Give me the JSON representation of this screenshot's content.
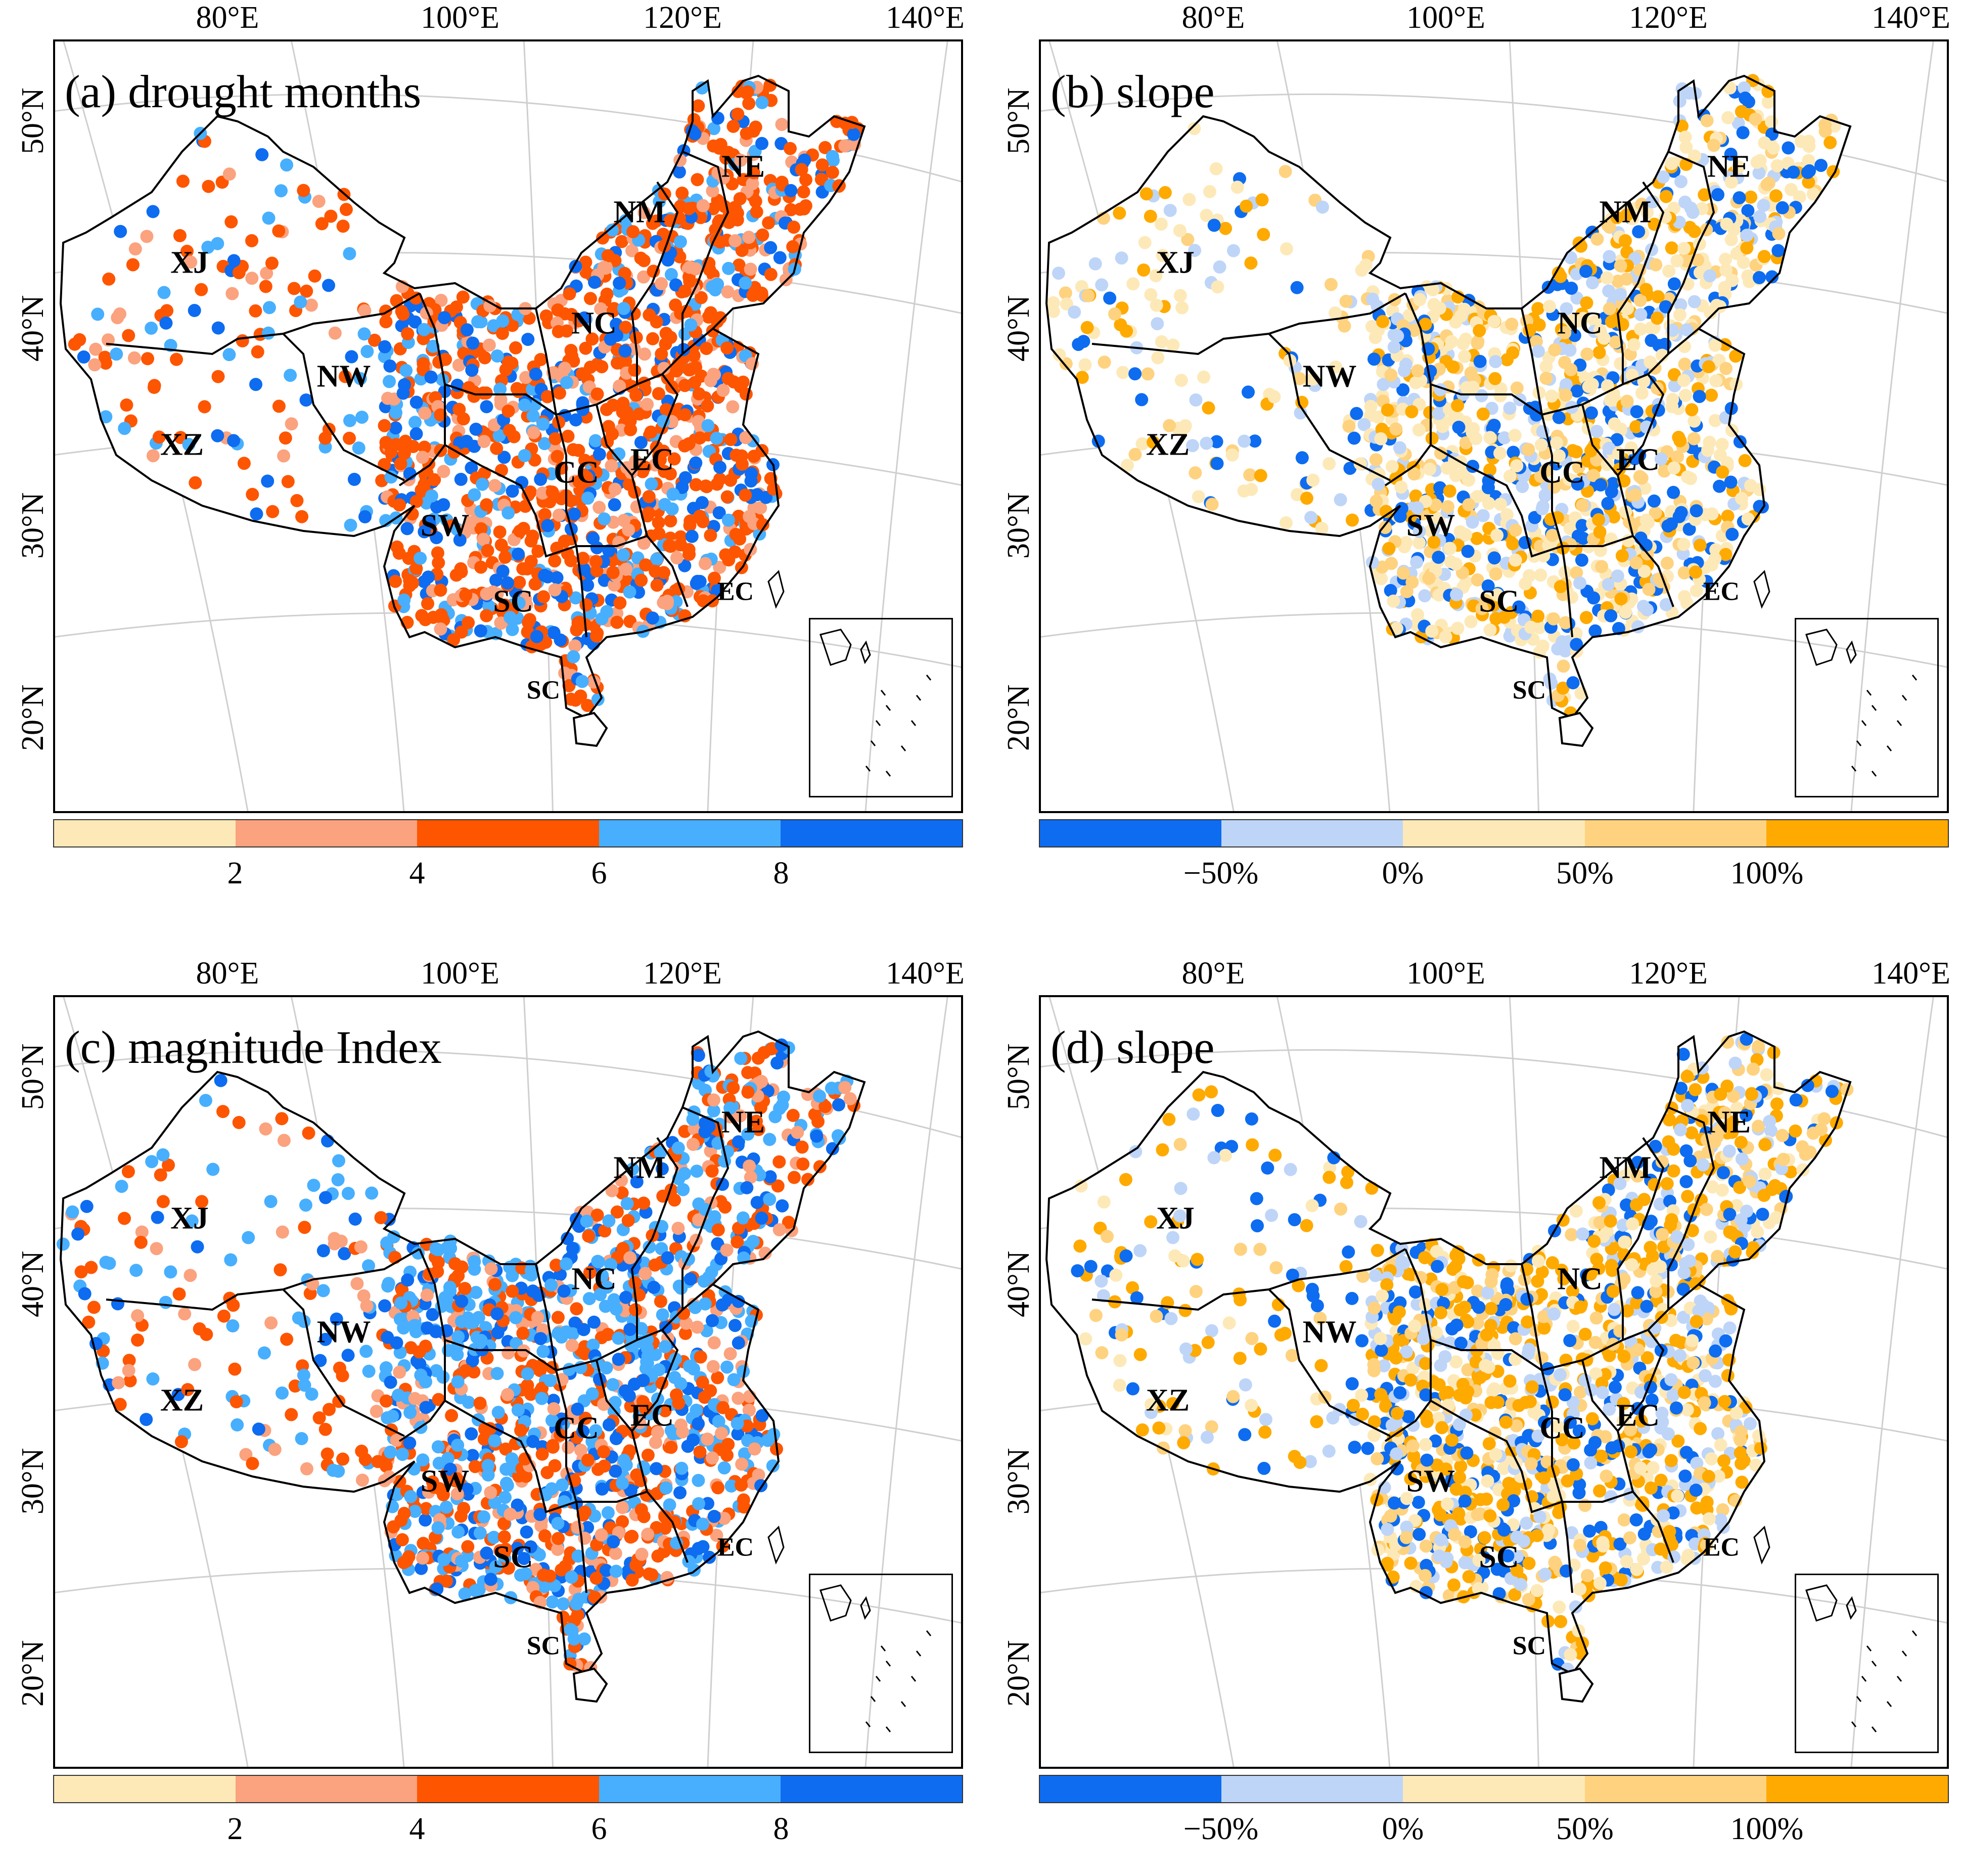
{
  "axes": {
    "lon_labels": [
      "80°E",
      "100°E",
      "120°E",
      "140°E"
    ],
    "lat_labels": [
      "50°N",
      "40°N",
      "30°N",
      "20°N"
    ]
  },
  "regions": [
    "XJ",
    "XZ",
    "NW",
    "SW",
    "NM",
    "NC",
    "CC",
    "SC",
    "EC",
    "NE"
  ],
  "inset_labels": [
    "EC",
    "SC"
  ],
  "panels": [
    {
      "id": "a",
      "title": "(a)  drought months",
      "legend_colors": [
        "#FDE9B8",
        "#FBA27E",
        "#FE5500",
        "#47AFFE",
        "#0D6CF0"
      ],
      "legend_ticks": [
        "2",
        "4",
        "6",
        "8"
      ],
      "dot_colors": [
        "#FE5500",
        "#FE5500",
        "#FE5500",
        "#FBA27E",
        "#47AFFE",
        "#0D6CF0"
      ]
    },
    {
      "id": "b",
      "title": "(b)  slope",
      "legend_colors": [
        "#0D6CF0",
        "#BED5F8",
        "#FDE9B8",
        "#FED27F",
        "#FEAA00"
      ],
      "legend_ticks": [
        "−50%",
        "0%",
        "50%",
        "100%"
      ],
      "dot_colors": [
        "#FDE9B8",
        "#BED5F8",
        "#FED27F",
        "#FEAA00",
        "#FDE9B8",
        "#0D6CF0"
      ]
    },
    {
      "id": "c",
      "title": "(c)  magnitude Index",
      "legend_colors": [
        "#FDE9B8",
        "#FBA27E",
        "#FE5500",
        "#47AFFE",
        "#0D6CF0"
      ],
      "legend_ticks": [
        "2",
        "4",
        "6",
        "8"
      ],
      "dot_colors": [
        "#47AFFE",
        "#FE5500",
        "#0D6CF0",
        "#47AFFE",
        "#FBA27E",
        "#FE5500"
      ]
    },
    {
      "id": "d",
      "title": "(d)  slope",
      "legend_colors": [
        "#0D6CF0",
        "#BED5F8",
        "#FDE9B8",
        "#FED27F",
        "#FEAA00"
      ],
      "legend_ticks": [
        "−50%",
        "0%",
        "50%",
        "100%"
      ],
      "dot_colors": [
        "#FEAA00",
        "#FEAA00",
        "#FED27F",
        "#BED5F8",
        "#FDE9B8",
        "#0D6CF0"
      ]
    }
  ]
}
